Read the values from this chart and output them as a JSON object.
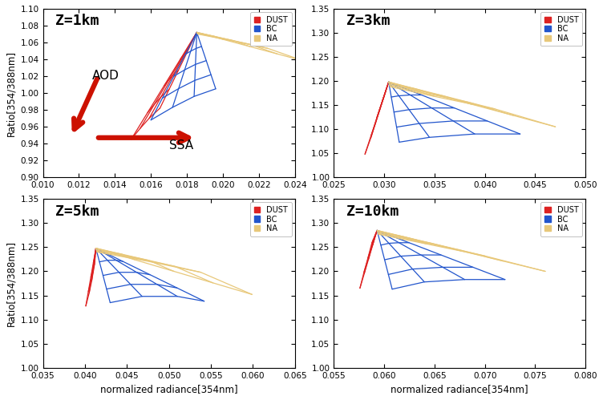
{
  "panels": [
    {
      "title": "Z=1km",
      "xlim": [
        0.01,
        0.024
      ],
      "ylim": [
        0.9,
        1.1
      ],
      "xticks": [
        0.01,
        0.012,
        0.014,
        0.016,
        0.018,
        0.02,
        0.022,
        0.024
      ],
      "yticks": [
        0.9,
        0.92,
        0.94,
        0.96,
        0.98,
        1.0,
        1.02,
        1.04,
        1.06,
        1.08,
        1.1
      ],
      "show_arrows": true,
      "show_xlabel": false,
      "show_ylabel": true,
      "aerosols": {
        "DUST": {
          "color": "#dd2222",
          "apex": [
            0.01855,
            1.072
          ],
          "ssa_points": [
            [
              0.0149,
              0.945
            ],
            [
              0.0154,
              0.958
            ],
            [
              0.0159,
              0.97
            ],
            [
              0.0165,
              0.982
            ]
          ]
        },
        "BC": {
          "color": "#2255cc",
          "apex": [
            0.01855,
            1.072
          ],
          "ssa_points": [
            [
              0.016,
              0.968
            ],
            [
              0.0172,
              0.983
            ],
            [
              0.0184,
              0.996
            ],
            [
              0.0196,
              1.005
            ]
          ]
        },
        "NA": {
          "color": "#e8c87a",
          "apex": [
            0.01855,
            1.072
          ],
          "ssa_points": [
            [
              0.0186,
              1.07
            ],
            [
              0.0205,
              1.062
            ],
            [
              0.0225,
              1.053
            ],
            [
              0.0245,
              1.038
            ]
          ]
        }
      }
    },
    {
      "title": "Z=3km",
      "xlim": [
        0.025,
        0.05
      ],
      "ylim": [
        1.0,
        1.35
      ],
      "xticks": [
        0.025,
        0.03,
        0.035,
        0.04,
        0.045,
        0.05
      ],
      "yticks": [
        1.0,
        1.05,
        1.1,
        1.15,
        1.2,
        1.25,
        1.3,
        1.35
      ],
      "show_arrows": false,
      "show_xlabel": false,
      "show_ylabel": false,
      "aerosols": {
        "DUST": {
          "color": "#dd2222",
          "apex": [
            0.03045,
            1.198
          ],
          "ssa_points": [
            [
              0.0281,
              1.048
            ],
            [
              0.0287,
              1.083
            ],
            [
              0.0293,
              1.125
            ],
            [
              0.0299,
              1.162
            ]
          ]
        },
        "BC": {
          "color": "#2255cc",
          "apex": [
            0.03045,
            1.198
          ],
          "ssa_points": [
            [
              0.0315,
              1.073
            ],
            [
              0.0345,
              1.083
            ],
            [
              0.039,
              1.09
            ],
            [
              0.0435,
              1.09
            ]
          ]
        },
        "NA": {
          "color": "#e8c87a",
          "apex": [
            0.03045,
            1.198
          ],
          "ssa_points": [
            [
              0.0306,
              1.188
            ],
            [
              0.035,
              1.168
            ],
            [
              0.041,
              1.142
            ],
            [
              0.047,
              1.105
            ]
          ]
        }
      }
    },
    {
      "title": "Z=5km",
      "xlim": [
        0.035,
        0.065
      ],
      "ylim": [
        1.0,
        1.35
      ],
      "xticks": [
        0.035,
        0.04,
        0.045,
        0.05,
        0.055,
        0.06,
        0.065
      ],
      "yticks": [
        1.0,
        1.05,
        1.1,
        1.15,
        1.2,
        1.25,
        1.3,
        1.35
      ],
      "show_arrows": false,
      "show_xlabel": true,
      "show_ylabel": true,
      "aerosols": {
        "DUST": {
          "color": "#dd2222",
          "apex": [
            0.0413,
            1.248
          ],
          "ssa_points": [
            [
              0.0401,
              1.128
            ],
            [
              0.0405,
              1.155
            ],
            [
              0.0408,
              1.18
            ],
            [
              0.04115,
              1.215
            ]
          ]
        },
        "BC": {
          "color": "#2255cc",
          "apex": [
            0.0413,
            1.248
          ],
          "ssa_points": [
            [
              0.043,
              1.135
            ],
            [
              0.0468,
              1.148
            ],
            [
              0.051,
              1.148
            ],
            [
              0.0542,
              1.138
            ]
          ]
        },
        "NA": {
          "color": "#e8c87a",
          "apex": [
            0.0413,
            1.248
          ],
          "ssa_points": [
            [
              0.04145,
              1.24
            ],
            [
              0.0472,
              1.222
            ],
            [
              0.0538,
              1.198
            ],
            [
              0.0599,
              1.152
            ]
          ]
        }
      }
    },
    {
      "title": "Z=10km",
      "xlim": [
        0.055,
        0.08
      ],
      "ylim": [
        1.0,
        1.35
      ],
      "xticks": [
        0.055,
        0.06,
        0.065,
        0.07,
        0.075,
        0.08
      ],
      "yticks": [
        1.0,
        1.05,
        1.1,
        1.15,
        1.2,
        1.25,
        1.3,
        1.35
      ],
      "show_arrows": false,
      "show_xlabel": true,
      "show_ylabel": false,
      "aerosols": {
        "DUST": {
          "color": "#dd2222",
          "apex": [
            0.0593,
            1.285
          ],
          "ssa_points": [
            [
              0.0576,
              1.165
            ],
            [
              0.058,
              1.198
            ],
            [
              0.0584,
              1.228
            ],
            [
              0.0588,
              1.26
            ]
          ]
        },
        "BC": {
          "color": "#2255cc",
          "apex": [
            0.0593,
            1.285
          ],
          "ssa_points": [
            [
              0.0608,
              1.163
            ],
            [
              0.064,
              1.178
            ],
            [
              0.068,
              1.183
            ],
            [
              0.072,
              1.183
            ]
          ]
        },
        "NA": {
          "color": "#e8c87a",
          "apex": [
            0.0593,
            1.285
          ],
          "ssa_points": [
            [
              0.05945,
              1.277
            ],
            [
              0.0642,
              1.257
            ],
            [
              0.07,
              1.232
            ],
            [
              0.076,
              1.2
            ]
          ]
        }
      }
    }
  ],
  "legend_entries": [
    {
      "label": "DUST",
      "color": "#dd2222"
    },
    {
      "label": "BC",
      "color": "#2255cc"
    },
    {
      "label": "NA",
      "color": "#e8c87a"
    }
  ],
  "xlabel": "normalized radiance[354nm]",
  "ylabel": "Ratio[354/388nm]"
}
